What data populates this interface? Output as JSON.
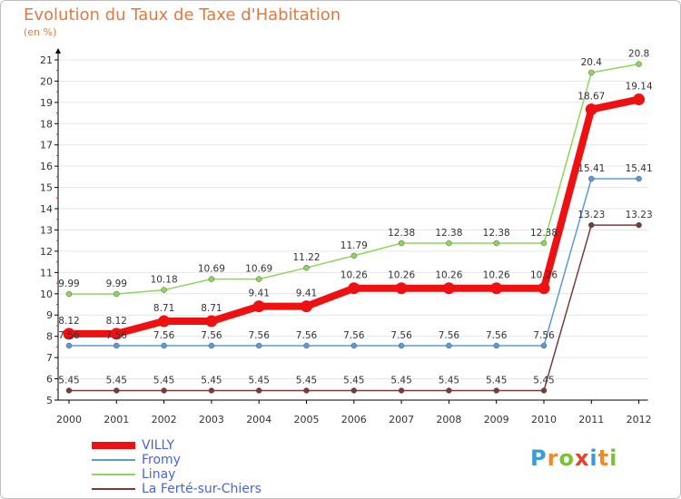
{
  "title": "Evolution du Taux de Taxe d'Habitation",
  "unit_label": "(en %)",
  "logo": {
    "text": "Proxiti",
    "letter_colors": [
      "#3a9bd6",
      "#f08a2c",
      "#7cbf3a",
      "#e8402a",
      "#3a9bd6",
      "#f08a2c",
      "#7cbf3a"
    ]
  },
  "colors": {
    "title": "#e07a40",
    "axis": "#000000",
    "grid": "#e6e6e6",
    "tick_label": "#333333",
    "value_label": "#333333",
    "legend_text": "#4a63e0"
  },
  "chart_data": {
    "type": "line",
    "title": "Evolution du Taux de Taxe d'Habitation",
    "ylabel": "(en %)",
    "x": [
      "2000",
      "2001",
      "2002",
      "2003",
      "2004",
      "2005",
      "2006",
      "2007",
      "2008",
      "2009",
      "2010",
      "2011",
      "2012"
    ],
    "ylim": [
      5,
      21
    ],
    "yticks": [
      5,
      6,
      7,
      8,
      9,
      10,
      11,
      12,
      13,
      14,
      15,
      16,
      17,
      18,
      19,
      20,
      21
    ],
    "grid": "horizontal",
    "legend_position": "bottom-left",
    "series": [
      {
        "name": "VILLY",
        "color": "#ee1111",
        "emphasis": true,
        "values": [
          8.12,
          8.12,
          8.71,
          8.71,
          9.41,
          9.41,
          10.26,
          10.26,
          10.26,
          10.26,
          10.26,
          18.67,
          19.14
        ],
        "labels": [
          "8.12",
          "8.12",
          "8.71",
          "8.71",
          "9.41",
          "9.41",
          "10.26",
          "10.26",
          "10.26",
          "10.26",
          "10.26",
          "18.67",
          "19.14"
        ]
      },
      {
        "name": "Fromy",
        "color": "#5b9bd5",
        "emphasis": false,
        "values": [
          7.56,
          7.56,
          7.56,
          7.56,
          7.56,
          7.56,
          7.56,
          7.56,
          7.56,
          7.56,
          7.56,
          15.41,
          15.41
        ],
        "labels": [
          "7.56",
          "7.56",
          "7.56",
          "7.56",
          "7.56",
          "7.56",
          "7.56",
          "7.56",
          "7.56",
          "7.56",
          "7.56",
          "15.41",
          "15.41"
        ]
      },
      {
        "name": "Linay",
        "color": "#8ed65a",
        "emphasis": false,
        "values": [
          9.99,
          9.99,
          10.18,
          10.69,
          10.69,
          11.22,
          11.79,
          12.38,
          12.38,
          12.38,
          12.38,
          20.4,
          20.8
        ],
        "labels": [
          "9.99",
          "9.99",
          "10.18",
          "10.69",
          "10.69",
          "11.22",
          "11.79",
          "12.38",
          "12.38",
          "12.38",
          "12.38",
          "20.4",
          "20.8"
        ]
      },
      {
        "name": "La Ferté-sur-Chiers",
        "color": "#7b3a3a",
        "emphasis": false,
        "values": [
          5.45,
          5.45,
          5.45,
          5.45,
          5.45,
          5.45,
          5.45,
          5.45,
          5.45,
          5.45,
          5.45,
          13.23,
          13.23
        ],
        "labels": [
          "5.45",
          "5.45",
          "5.45",
          "5.45",
          "5.45",
          "5.45",
          "5.45",
          "5.45",
          "5.45",
          "5.45",
          "5.45",
          "13.23",
          "13.23"
        ]
      }
    ]
  }
}
